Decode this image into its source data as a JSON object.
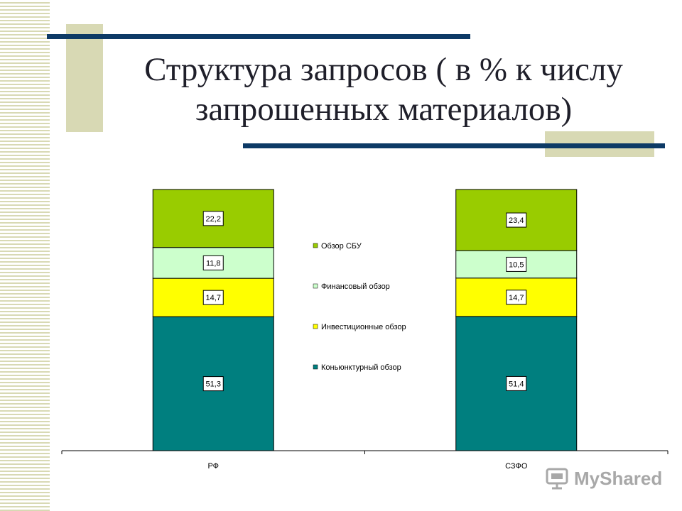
{
  "slide": {
    "title": "Структура запросов ( в % к числу запрошенных материалов)",
    "watermark": "MyShared"
  },
  "colors": {
    "deco_bar": "#0d3a66",
    "deco_block": "#d8d9b4",
    "stripe": "#d8d9b4"
  },
  "chart_data": {
    "type": "bar",
    "stacked": true,
    "categories": [
      "РФ",
      "СЗФО"
    ],
    "ylim": [
      0,
      100
    ],
    "grid": false,
    "legend_position": "center",
    "series": [
      {
        "name": "Коньюнктурный обзор",
        "values": [
          51.3,
          51.4
        ],
        "labels": [
          "51,3",
          "51,4"
        ],
        "color": "#007f7f"
      },
      {
        "name": "Инвестиционные обзор",
        "values": [
          14.7,
          14.7
        ],
        "labels": [
          "14,7",
          "14,7"
        ],
        "color": "#ffff00"
      },
      {
        "name": "Финансовый обзор",
        "values": [
          11.8,
          10.5
        ],
        "labels": [
          "11,8",
          "10,5"
        ],
        "color": "#ccffcc"
      },
      {
        "name": "Обзор СБУ",
        "values": [
          22.2,
          23.4
        ],
        "labels": [
          "22,2",
          "23,4"
        ],
        "color": "#99cc00"
      }
    ]
  }
}
